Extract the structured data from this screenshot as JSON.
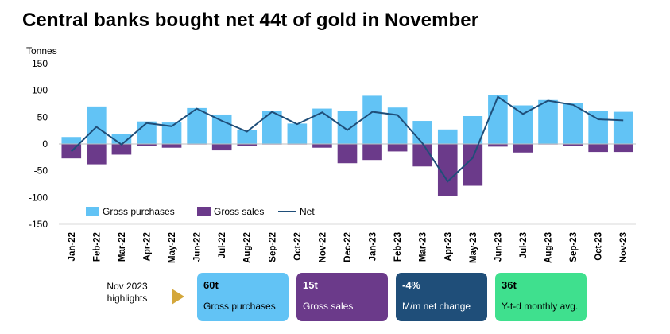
{
  "header": {
    "title": "Central banks bought net 44t of gold in November",
    "unit": "Tonnes"
  },
  "colors": {
    "gross_purchases": "#62c3f5",
    "gross_sales": "#6b3a8a",
    "net": "#1f4e79",
    "arrow": "#d4a73a"
  },
  "chart_data": {
    "type": "bar",
    "categories": [
      "Jan-22",
      "Feb-22",
      "Mar-22",
      "Apr-22",
      "May-22",
      "Jun-22",
      "Jul-22",
      "Aug-22",
      "Sep-22",
      "Oct-22",
      "Nov-22",
      "Dec-22",
      "Jan-23",
      "Feb-23",
      "Mar-23",
      "Apr-23",
      "May-23",
      "Jun-23",
      "Jul-23",
      "Aug-23",
      "Sep-23",
      "Oct-23",
      "Nov-23"
    ],
    "series": [
      {
        "name": "Gross purchases",
        "type": "bar",
        "values": [
          13,
          70,
          19,
          42,
          40,
          67,
          55,
          26,
          61,
          38,
          66,
          62,
          90,
          68,
          43,
          27,
          52,
          92,
          72,
          82,
          76,
          61,
          60
        ]
      },
      {
        "name": "Gross sales",
        "type": "bar",
        "values": [
          -27,
          -38,
          -20,
          -3,
          -7,
          -1,
          -12,
          -3,
          -1,
          -1,
          -7,
          -36,
          -30,
          -14,
          -42,
          -97,
          -78,
          -5,
          -16,
          -1,
          -3,
          -15,
          -15
        ]
      },
      {
        "name": "Net",
        "type": "line",
        "values": [
          -14,
          32,
          -1,
          39,
          33,
          66,
          43,
          23,
          60,
          37,
          59,
          26,
          60,
          54,
          1,
          -70,
          -26,
          88,
          56,
          81,
          73,
          46,
          44
        ]
      }
    ],
    "ylim": [
      -150,
      150
    ],
    "yticks": [
      150,
      100,
      50,
      0,
      -50,
      -100,
      -150
    ],
    "grid": false,
    "legend_position": "bottom-left"
  },
  "highlights": {
    "label": "Nov 2023\nhighlights",
    "cards": [
      {
        "value": "60t",
        "label": "Gross purchases",
        "bg": "#62c3f5",
        "fg": "#000000"
      },
      {
        "value": "15t",
        "label": "Gross sales",
        "bg": "#6b3a8a",
        "fg": "#ffffff"
      },
      {
        "value": "-4%",
        "label": "M/m net change",
        "bg": "#1f4e79",
        "fg": "#ffffff"
      },
      {
        "value": "36t",
        "label": "Y-t-d monthly avg.",
        "bg": "#3fe08e",
        "fg": "#000000"
      }
    ]
  }
}
